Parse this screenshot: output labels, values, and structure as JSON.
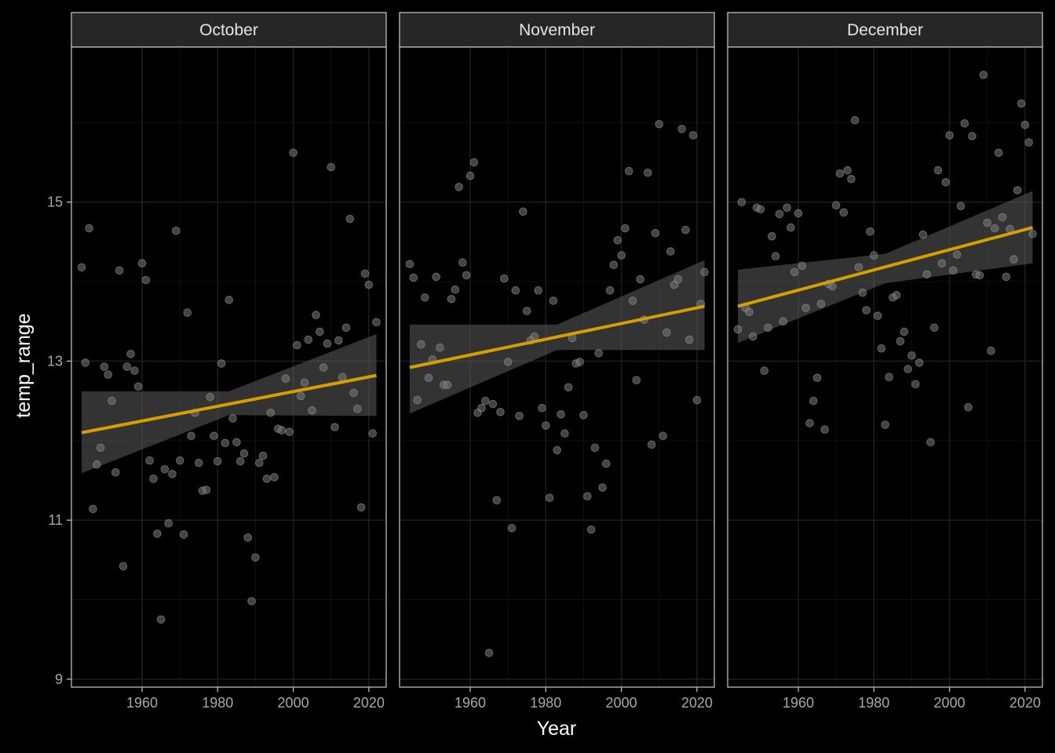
{
  "colors": {
    "background": "#000000",
    "panel_border": "#bdbdbd",
    "strip_fill": "#262626",
    "grid_major": "#1f1f1f",
    "grid_minor": "#0f0f0f",
    "point": "#7a7a7a",
    "trend_line": "#d4a000",
    "ribbon": "#5c5c5c"
  },
  "chart_data": {
    "type": "scatter",
    "facets": [
      "October",
      "November",
      "December"
    ],
    "xlabel": "Year",
    "ylabel": "temp_range",
    "xlim": [
      1941.3,
      2024.6
    ],
    "ylim": [
      8.9,
      16.95
    ],
    "x_ticks": [
      "1960",
      "1980",
      "2000",
      "2020"
    ],
    "y_ticks": [
      "9",
      "11",
      "13",
      "15"
    ],
    "grid": true,
    "series": [
      {
        "panel": "October",
        "points": [
          [
            1944,
            14.18
          ],
          [
            1945,
            12.98
          ],
          [
            1946,
            14.67
          ],
          [
            1947,
            11.14
          ],
          [
            1948,
            11.7
          ],
          [
            1949,
            11.91
          ],
          [
            1950,
            12.93
          ],
          [
            1951,
            12.83
          ],
          [
            1952,
            12.5
          ],
          [
            1953,
            11.6
          ],
          [
            1954,
            14.14
          ],
          [
            1955,
            10.42
          ],
          [
            1956,
            12.93
          ],
          [
            1957,
            13.09
          ],
          [
            1958,
            12.88
          ],
          [
            1959,
            12.68
          ],
          [
            1960,
            14.23
          ],
          [
            1961,
            14.02
          ],
          [
            1962,
            11.75
          ],
          [
            1963,
            11.52
          ],
          [
            1964,
            10.83
          ],
          [
            1965,
            9.75
          ],
          [
            1966,
            11.64
          ],
          [
            1967,
            10.96
          ],
          [
            1968,
            11.58
          ],
          [
            1969,
            14.64
          ],
          [
            1970,
            11.75
          ],
          [
            1971,
            10.82
          ],
          [
            1972,
            13.61
          ],
          [
            1973,
            12.06
          ],
          [
            1974,
            12.35
          ],
          [
            1975,
            11.72
          ],
          [
            1976,
            11.37
          ],
          [
            1977,
            11.38
          ],
          [
            1978,
            12.55
          ],
          [
            1979,
            12.06
          ],
          [
            1980,
            11.74
          ],
          [
            1981,
            12.97
          ],
          [
            1982,
            11.97
          ],
          [
            1983,
            13.77
          ],
          [
            1984,
            12.28
          ],
          [
            1985,
            11.98
          ],
          [
            1986,
            11.74
          ],
          [
            1987,
            11.84
          ],
          [
            1988,
            10.78
          ],
          [
            1989,
            9.98
          ],
          [
            1990,
            10.53
          ],
          [
            1991,
            11.72
          ],
          [
            1992,
            11.81
          ],
          [
            1993,
            11.52
          ],
          [
            1994,
            12.35
          ],
          [
            1995,
            11.54
          ],
          [
            1996,
            12.15
          ],
          [
            1997,
            12.13
          ],
          [
            1998,
            12.78
          ],
          [
            1999,
            12.11
          ],
          [
            2000,
            15.62
          ],
          [
            2001,
            13.2
          ],
          [
            2002,
            12.56
          ],
          [
            2003,
            12.73
          ],
          [
            2004,
            13.27
          ],
          [
            2005,
            12.38
          ],
          [
            2006,
            13.58
          ],
          [
            2007,
            13.37
          ],
          [
            2008,
            12.92
          ],
          [
            2009,
            13.22
          ],
          [
            2010,
            15.44
          ],
          [
            2011,
            12.17
          ],
          [
            2012,
            13.26
          ],
          [
            2013,
            12.8
          ],
          [
            2014,
            13.42
          ],
          [
            2015,
            14.79
          ],
          [
            2016,
            12.6
          ],
          [
            2017,
            12.4
          ],
          [
            2018,
            11.16
          ],
          [
            2019,
            14.1
          ],
          [
            2020,
            13.96
          ],
          [
            2021,
            12.09
          ],
          [
            2022,
            13.49
          ]
        ],
        "trend": {
          "x": [
            1944,
            2022
          ],
          "y": [
            12.1,
            12.82
          ]
        },
        "ribbon": {
          "x": [
            1944,
            1983,
            2022
          ],
          "lower": [
            11.59,
            12.32,
            12.31
          ],
          "upper": [
            12.62,
            12.62,
            13.34
          ]
        }
      },
      {
        "panel": "November",
        "points": [
          [
            1944,
            14.22
          ],
          [
            1945,
            14.05
          ],
          [
            1946,
            12.51
          ],
          [
            1947,
            13.21
          ],
          [
            1948,
            13.8
          ],
          [
            1949,
            12.79
          ],
          [
            1950,
            13.02
          ],
          [
            1951,
            14.06
          ],
          [
            1952,
            13.17
          ],
          [
            1953,
            12.7
          ],
          [
            1954,
            12.7
          ],
          [
            1955,
            13.78
          ],
          [
            1956,
            13.9
          ],
          [
            1957,
            15.19
          ],
          [
            1958,
            14.24
          ],
          [
            1959,
            14.08
          ],
          [
            1960,
            15.33
          ],
          [
            1961,
            15.5
          ],
          [
            1962,
            12.35
          ],
          [
            1963,
            12.41
          ],
          [
            1964,
            12.5
          ],
          [
            1965,
            9.33
          ],
          [
            1966,
            12.46
          ],
          [
            1967,
            11.25
          ],
          [
            1968,
            12.36
          ],
          [
            1969,
            14.04
          ],
          [
            1970,
            12.99
          ],
          [
            1971,
            10.9
          ],
          [
            1972,
            13.89
          ],
          [
            1973,
            12.31
          ],
          [
            1974,
            14.88
          ],
          [
            1975,
            13.63
          ],
          [
            1976,
            13.26
          ],
          [
            1977,
            13.31
          ],
          [
            1978,
            13.89
          ],
          [
            1979,
            12.41
          ],
          [
            1980,
            12.19
          ],
          [
            1981,
            11.28
          ],
          [
            1982,
            13.76
          ],
          [
            1983,
            11.88
          ],
          [
            1984,
            12.33
          ],
          [
            1985,
            12.09
          ],
          [
            1986,
            12.67
          ],
          [
            1987,
            13.29
          ],
          [
            1988,
            12.97
          ],
          [
            1989,
            12.99
          ],
          [
            1990,
            12.32
          ],
          [
            1991,
            11.3
          ],
          [
            1992,
            10.88
          ],
          [
            1993,
            11.91
          ],
          [
            1994,
            13.1
          ],
          [
            1995,
            11.41
          ],
          [
            1996,
            11.71
          ],
          [
            1997,
            13.89
          ],
          [
            1998,
            14.21
          ],
          [
            1999,
            14.52
          ],
          [
            2000,
            14.33
          ],
          [
            2001,
            14.67
          ],
          [
            2002,
            15.39
          ],
          [
            2003,
            13.76
          ],
          [
            2004,
            12.76
          ],
          [
            2005,
            14.03
          ],
          [
            2006,
            13.52
          ],
          [
            2007,
            15.37
          ],
          [
            2008,
            11.95
          ],
          [
            2009,
            14.61
          ],
          [
            2010,
            15.98
          ],
          [
            2011,
            12.06
          ],
          [
            2012,
            13.36
          ],
          [
            2013,
            14.38
          ],
          [
            2014,
            13.96
          ],
          [
            2015,
            14.03
          ],
          [
            2016,
            15.92
          ],
          [
            2017,
            14.65
          ],
          [
            2018,
            13.27
          ],
          [
            2019,
            15.84
          ],
          [
            2020,
            12.51
          ],
          [
            2021,
            13.72
          ],
          [
            2022,
            14.12
          ]
        ],
        "trend": {
          "x": [
            1944,
            2022
          ],
          "y": [
            12.92,
            13.69
          ]
        },
        "ribbon": {
          "x": [
            1944,
            1983,
            2022
          ],
          "lower": [
            12.34,
            13.14,
            13.14
          ],
          "upper": [
            13.46,
            13.46,
            14.27
          ]
        }
      },
      {
        "panel": "December",
        "points": [
          [
            1944,
            13.4
          ],
          [
            1945,
            15.0
          ],
          [
            1946,
            13.67
          ],
          [
            1947,
            13.62
          ],
          [
            1948,
            13.31
          ],
          [
            1949,
            14.93
          ],
          [
            1950,
            14.91
          ],
          [
            1951,
            12.88
          ],
          [
            1952,
            13.42
          ],
          [
            1953,
            14.57
          ],
          [
            1954,
            14.32
          ],
          [
            1955,
            14.85
          ],
          [
            1956,
            13.5
          ],
          [
            1957,
            14.93
          ],
          [
            1958,
            14.68
          ],
          [
            1959,
            14.12
          ],
          [
            1960,
            14.86
          ],
          [
            1961,
            14.2
          ],
          [
            1962,
            13.67
          ],
          [
            1963,
            12.22
          ],
          [
            1964,
            12.5
          ],
          [
            1965,
            12.79
          ],
          [
            1966,
            13.72
          ],
          [
            1967,
            12.14
          ],
          [
            1968,
            13.97
          ],
          [
            1969,
            13.94
          ],
          [
            1970,
            14.96
          ],
          [
            1971,
            15.36
          ],
          [
            1972,
            14.87
          ],
          [
            1973,
            15.4
          ],
          [
            1974,
            15.29
          ],
          [
            1975,
            16.03
          ],
          [
            1976,
            14.18
          ],
          [
            1977,
            13.86
          ],
          [
            1978,
            13.64
          ],
          [
            1979,
            14.63
          ],
          [
            1980,
            14.33
          ],
          [
            1981,
            13.57
          ],
          [
            1982,
            13.16
          ],
          [
            1983,
            12.2
          ],
          [
            1984,
            12.8
          ],
          [
            1985,
            13.8
          ],
          [
            1986,
            13.83
          ],
          [
            1987,
            13.25
          ],
          [
            1988,
            13.37
          ],
          [
            1989,
            12.9
          ],
          [
            1990,
            13.07
          ],
          [
            1991,
            12.71
          ],
          [
            1992,
            12.98
          ],
          [
            1993,
            14.59
          ],
          [
            1994,
            14.09
          ],
          [
            1995,
            11.98
          ],
          [
            1996,
            13.42
          ],
          [
            1997,
            15.4
          ],
          [
            1998,
            14.23
          ],
          [
            1999,
            15.25
          ],
          [
            2000,
            15.84
          ],
          [
            2001,
            14.14
          ],
          [
            2002,
            14.34
          ],
          [
            2003,
            14.95
          ],
          [
            2004,
            15.99
          ],
          [
            2005,
            12.42
          ],
          [
            2006,
            15.83
          ],
          [
            2007,
            14.09
          ],
          [
            2008,
            14.08
          ],
          [
            2009,
            16.6
          ],
          [
            2010,
            14.74
          ],
          [
            2011,
            13.13
          ],
          [
            2012,
            14.67
          ],
          [
            2013,
            15.62
          ],
          [
            2014,
            14.81
          ],
          [
            2015,
            14.06
          ],
          [
            2016,
            14.66
          ],
          [
            2017,
            14.28
          ],
          [
            2018,
            15.15
          ],
          [
            2019,
            16.24
          ],
          [
            2020,
            15.97
          ],
          [
            2021,
            15.75
          ],
          [
            2022,
            14.6
          ]
        ],
        "trend": {
          "x": [
            1944,
            2022
          ],
          "y": [
            13.69,
            14.68
          ]
        },
        "ribbon": {
          "x": [
            1944,
            1983,
            2022
          ],
          "lower": [
            13.23,
            13.98,
            14.23
          ],
          "upper": [
            14.15,
            14.35,
            15.14
          ]
        }
      }
    ]
  }
}
